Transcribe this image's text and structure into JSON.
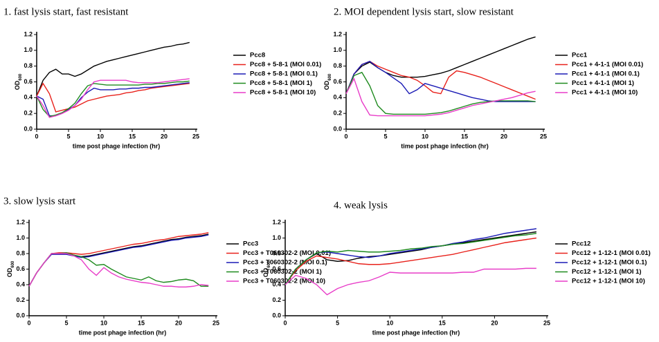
{
  "chart_data": [
    {
      "type": "line",
      "title": "1. fast lysis start, fast resistant",
      "xlabel": "time post phage infection (hr)",
      "ylabel": "OD",
      "ylabel_subscript": "600",
      "xlim": [
        0,
        25
      ],
      "xticks": [
        0,
        5,
        10,
        15,
        20,
        25
      ],
      "ylim": [
        0,
        1.2
      ],
      "yticks": [
        {
          "value": 0,
          "label": "0.0"
        },
        0.2,
        0.4,
        0.6,
        0.8,
        {
          "value": 1,
          "label": "1.0"
        },
        1.2
      ],
      "x": [
        0,
        1,
        2,
        3,
        4,
        5,
        6,
        7,
        8,
        9,
        10,
        11,
        12,
        13,
        14,
        15,
        16,
        17,
        18,
        19,
        20,
        21,
        22,
        23,
        24
      ],
      "series": [
        {
          "name": "Pcc8",
          "color": "#000000",
          "values": [
            0.42,
            0.62,
            0.72,
            0.76,
            0.7,
            0.7,
            0.67,
            0.7,
            0.75,
            0.8,
            0.83,
            0.86,
            0.88,
            0.9,
            0.92,
            0.94,
            0.96,
            0.98,
            1.0,
            1.02,
            1.04,
            1.05,
            1.07,
            1.08,
            1.1
          ]
        },
        {
          "name": "Pcc8 + 5-8-1 (MOI 0.01)",
          "color": "#e8201a",
          "values": [
            0.42,
            0.58,
            0.45,
            0.22,
            0.24,
            0.26,
            0.28,
            0.32,
            0.36,
            0.38,
            0.4,
            0.42,
            0.43,
            0.44,
            0.46,
            0.47,
            0.49,
            0.5,
            0.52,
            0.53,
            0.54,
            0.55,
            0.56,
            0.57,
            0.58
          ]
        },
        {
          "name": "Pcc8 + 5-8-1 (MOI 0.1)",
          "color": "#1a1ab5",
          "values": [
            0.42,
            0.38,
            0.17,
            0.17,
            0.2,
            0.25,
            0.3,
            0.4,
            0.47,
            0.52,
            0.5,
            0.5,
            0.5,
            0.51,
            0.51,
            0.52,
            0.52,
            0.53,
            0.53,
            0.54,
            0.55,
            0.56,
            0.57,
            0.58,
            0.59
          ]
        },
        {
          "name": "Pcc8 + 5-8-1 (MOI 1)",
          "color": "#1e8a1e",
          "values": [
            0.42,
            0.25,
            0.16,
            0.18,
            0.21,
            0.26,
            0.33,
            0.45,
            0.55,
            0.58,
            0.57,
            0.56,
            0.56,
            0.56,
            0.56,
            0.56,
            0.56,
            0.57,
            0.57,
            0.58,
            0.58,
            0.59,
            0.6,
            0.6,
            0.61
          ]
        },
        {
          "name": "Pcc8 + 5-8-1 (MOI 10)",
          "color": "#e83cc8",
          "values": [
            0.42,
            0.3,
            0.15,
            0.17,
            0.2,
            0.24,
            0.3,
            0.38,
            0.5,
            0.6,
            0.62,
            0.62,
            0.62,
            0.62,
            0.62,
            0.6,
            0.59,
            0.59,
            0.59,
            0.59,
            0.6,
            0.61,
            0.62,
            0.63,
            0.64
          ]
        }
      ]
    },
    {
      "type": "line",
      "title": "2. MOI dependent lysis start, slow resistant",
      "xlabel": "time post phage infection (hr)",
      "ylabel": "OD",
      "ylabel_subscript": "600",
      "xlim": [
        0,
        25
      ],
      "xticks": [
        0,
        5,
        10,
        15,
        20,
        25
      ],
      "ylim": [
        0,
        1.2
      ],
      "yticks": [
        {
          "value": 0,
          "label": "0.0"
        },
        0.2,
        0.4,
        0.6,
        0.8,
        {
          "value": 1,
          "label": "1.0"
        },
        1.2
      ],
      "x": [
        0,
        1,
        2,
        3,
        4,
        5,
        6,
        7,
        8,
        9,
        10,
        11,
        12,
        13,
        14,
        15,
        16,
        17,
        18,
        19,
        20,
        21,
        22,
        23,
        24
      ],
      "series": [
        {
          "name": "Pcc1",
          "color": "#000000",
          "values": [
            0.45,
            0.7,
            0.8,
            0.85,
            0.78,
            0.72,
            0.68,
            0.66,
            0.66,
            0.66,
            0.67,
            0.69,
            0.71,
            0.74,
            0.78,
            0.82,
            0.86,
            0.9,
            0.94,
            0.98,
            1.02,
            1.06,
            1.1,
            1.14,
            1.17
          ]
        },
        {
          "name": "Pcc1 + 4-1-1 (MOI 0.01)",
          "color": "#e8201a",
          "values": [
            0.45,
            0.7,
            0.82,
            0.86,
            0.8,
            0.76,
            0.72,
            0.68,
            0.66,
            0.62,
            0.55,
            0.47,
            0.45,
            0.66,
            0.74,
            0.72,
            0.69,
            0.66,
            0.62,
            0.58,
            0.54,
            0.5,
            0.46,
            0.42,
            0.38
          ]
        },
        {
          "name": "Pcc1 + 4-1-1 (MOI 0.1)",
          "color": "#1a1ab5",
          "values": [
            0.45,
            0.7,
            0.82,
            0.86,
            0.78,
            0.72,
            0.65,
            0.58,
            0.45,
            0.5,
            0.58,
            0.55,
            0.52,
            0.49,
            0.46,
            0.43,
            0.4,
            0.38,
            0.36,
            0.35,
            0.35,
            0.35,
            0.35,
            0.35,
            0.35
          ]
        },
        {
          "name": "Pcc1 + 4-1-1 (MOI 1)",
          "color": "#1e8a1e",
          "values": [
            0.45,
            0.68,
            0.72,
            0.55,
            0.3,
            0.2,
            0.19,
            0.19,
            0.19,
            0.19,
            0.19,
            0.2,
            0.21,
            0.23,
            0.26,
            0.29,
            0.32,
            0.34,
            0.35,
            0.36,
            0.36,
            0.36,
            0.36,
            0.36,
            0.35
          ]
        },
        {
          "name": "Pcc1 + 4-1-1 (MOI 10)",
          "color": "#e83cc8",
          "values": [
            0.45,
            0.64,
            0.35,
            0.18,
            0.17,
            0.17,
            0.17,
            0.17,
            0.17,
            0.17,
            0.17,
            0.18,
            0.19,
            0.21,
            0.24,
            0.27,
            0.3,
            0.32,
            0.34,
            0.36,
            0.38,
            0.4,
            0.43,
            0.46,
            0.48
          ]
        }
      ]
    },
    {
      "type": "line",
      "title": "3. slow lysis start",
      "xlabel": "time post phage infection (hr)",
      "ylabel": "OD",
      "ylabel_subscript": "600",
      "xlim": [
        0,
        25
      ],
      "xticks": [
        0,
        5,
        10,
        15,
        20,
        25
      ],
      "ylim": [
        0,
        1.2
      ],
      "yticks": [
        {
          "value": 0,
          "label": "0.0"
        },
        0.2,
        0.4,
        0.6,
        0.8,
        {
          "value": 1,
          "label": "1.0"
        },
        1.2
      ],
      "x": [
        0,
        1,
        2,
        3,
        4,
        5,
        6,
        7,
        8,
        9,
        10,
        11,
        12,
        13,
        14,
        15,
        16,
        17,
        18,
        19,
        20,
        21,
        22,
        23,
        24
      ],
      "series": [
        {
          "name": "Pcc3",
          "color": "#000000",
          "values": [
            0.38,
            0.55,
            0.68,
            0.8,
            0.8,
            0.8,
            0.78,
            0.76,
            0.77,
            0.79,
            0.81,
            0.83,
            0.85,
            0.87,
            0.89,
            0.9,
            0.92,
            0.94,
            0.96,
            0.98,
            0.99,
            1.01,
            1.02,
            1.03,
            1.05
          ]
        },
        {
          "name": "Pcc3 + T060302-2 (MOI 0.01)",
          "color": "#e8201a",
          "values": [
            0.38,
            0.55,
            0.68,
            0.8,
            0.81,
            0.81,
            0.8,
            0.79,
            0.8,
            0.82,
            0.84,
            0.86,
            0.88,
            0.9,
            0.92,
            0.93,
            0.95,
            0.97,
            0.98,
            1.0,
            1.02,
            1.03,
            1.04,
            1.05,
            1.07
          ]
        },
        {
          "name": "Pcc3 + T060302-2 (MOI 0.1)",
          "color": "#1a1ab5",
          "values": [
            0.38,
            0.55,
            0.68,
            0.79,
            0.79,
            0.79,
            0.77,
            0.75,
            0.76,
            0.78,
            0.8,
            0.82,
            0.84,
            0.86,
            0.88,
            0.89,
            0.91,
            0.93,
            0.95,
            0.97,
            0.98,
            1.0,
            1.01,
            1.02,
            1.04
          ]
        },
        {
          "name": "Pcc3 + T060302-2 (MOI 1)",
          "color": "#1e8a1e",
          "values": [
            0.38,
            0.55,
            0.68,
            0.8,
            0.8,
            0.81,
            0.78,
            0.76,
            0.72,
            0.65,
            0.66,
            0.6,
            0.55,
            0.5,
            0.48,
            0.46,
            0.5,
            0.45,
            0.43,
            0.44,
            0.46,
            0.47,
            0.45,
            0.38,
            0.38
          ]
        },
        {
          "name": "Pcc3 + T060302-2 (MOI 10)",
          "color": "#e83cc8",
          "values": [
            0.38,
            0.55,
            0.68,
            0.8,
            0.8,
            0.8,
            0.77,
            0.72,
            0.6,
            0.52,
            0.62,
            0.55,
            0.5,
            0.47,
            0.45,
            0.43,
            0.42,
            0.4,
            0.38,
            0.38,
            0.37,
            0.37,
            0.38,
            0.4,
            0.39
          ]
        }
      ]
    },
    {
      "type": "line",
      "title": "4. weak lysis",
      "xlabel": "time post phage infection (hr)",
      "ylabel": "OD",
      "ylabel_subscript": "600",
      "xlim": [
        0,
        25
      ],
      "xticks": [
        0,
        5,
        10,
        15,
        20,
        25
      ],
      "ylim": [
        0,
        1.2
      ],
      "yticks": [
        {
          "value": 0,
          "label": "0.0"
        },
        0.2,
        0.4,
        0.6,
        0.8,
        {
          "value": 1,
          "label": "1.0"
        },
        1.2
      ],
      "x": [
        0,
        1,
        2,
        3,
        4,
        5,
        6,
        7,
        8,
        9,
        10,
        11,
        12,
        13,
        14,
        15,
        16,
        17,
        18,
        19,
        20,
        21,
        22,
        23,
        24
      ],
      "series": [
        {
          "name": "Pcc12",
          "color": "#000000",
          "values": [
            0.4,
            0.6,
            0.72,
            0.8,
            0.72,
            0.7,
            0.71,
            0.74,
            0.76,
            0.77,
            0.79,
            0.81,
            0.83,
            0.85,
            0.88,
            0.9,
            0.92,
            0.94,
            0.96,
            0.98,
            1.0,
            1.02,
            1.04,
            1.06,
            1.08
          ]
        },
        {
          "name": "Pcc12 + 1-12-1 (MOI 0.01)",
          "color": "#e8201a",
          "values": [
            0.4,
            0.58,
            0.7,
            0.77,
            0.75,
            0.73,
            0.7,
            0.67,
            0.66,
            0.66,
            0.67,
            0.69,
            0.71,
            0.73,
            0.75,
            0.77,
            0.79,
            0.82,
            0.85,
            0.88,
            0.91,
            0.94,
            0.96,
            0.98,
            1.0
          ]
        },
        {
          "name": "Pcc12 + 1-12-1 (MOI 0.1)",
          "color": "#1a1ab5",
          "values": [
            0.4,
            0.6,
            0.72,
            0.81,
            0.82,
            0.8,
            0.78,
            0.76,
            0.75,
            0.77,
            0.8,
            0.82,
            0.84,
            0.86,
            0.88,
            0.9,
            0.93,
            0.95,
            0.98,
            1.0,
            1.03,
            1.06,
            1.08,
            1.1,
            1.12
          ]
        },
        {
          "name": "Pcc12 + 1-12-1 (MOI 1)",
          "color": "#1e8a1e",
          "values": [
            0.4,
            0.6,
            0.72,
            0.81,
            0.83,
            0.82,
            0.84,
            0.83,
            0.82,
            0.82,
            0.83,
            0.84,
            0.86,
            0.87,
            0.89,
            0.9,
            0.92,
            0.93,
            0.95,
            0.97,
            0.99,
            1.01,
            1.03,
            1.04,
            1.06
          ]
        },
        {
          "name": "Pcc12 + 1-12-1 (MOI 10)",
          "color": "#e83cc8",
          "values": [
            0.4,
            0.52,
            0.48,
            0.4,
            0.27,
            0.35,
            0.4,
            0.43,
            0.45,
            0.5,
            0.56,
            0.55,
            0.55,
            0.55,
            0.55,
            0.55,
            0.55,
            0.56,
            0.56,
            0.6,
            0.6,
            0.6,
            0.6,
            0.61,
            0.61
          ]
        }
      ]
    }
  ]
}
